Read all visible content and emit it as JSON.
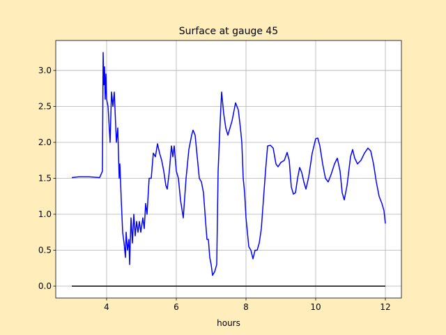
{
  "chart_data": {
    "type": "line",
    "title": "Surface at gauge 45",
    "xlabel": "hours",
    "xlim": [
      2.54,
      12.46
    ],
    "xticks": [
      4,
      6,
      8,
      10,
      12
    ],
    "ylim": [
      -0.165,
      3.417
    ],
    "yticks": [
      {
        "value": 0,
        "label": "0.0"
      },
      0.5,
      {
        "value": 1,
        "label": "1.0"
      },
      1.5,
      {
        "value": 2,
        "label": "2.0"
      },
      2.5,
      {
        "value": 3,
        "label": "3.0"
      }
    ],
    "grid": true,
    "series": [
      {
        "color": "#0000ff",
        "x": [
          3.0,
          3.2,
          3.5,
          3.8,
          3.88,
          3.9,
          3.92,
          3.94,
          3.96,
          3.98,
          4.0,
          4.04,
          4.1,
          4.14,
          4.18,
          4.22,
          4.28,
          4.32,
          4.36,
          4.38,
          4.42,
          4.46,
          4.5,
          4.54,
          4.56,
          4.6,
          4.64,
          4.66,
          4.7,
          4.74,
          4.78,
          4.82,
          4.86,
          4.9,
          4.94,
          4.98,
          5.04,
          5.08,
          5.12,
          5.16,
          5.22,
          5.28,
          5.34,
          5.4,
          5.46,
          5.52,
          5.58,
          5.64,
          5.7,
          5.74,
          5.8,
          5.86,
          5.9,
          5.94,
          6.0,
          6.06,
          6.12,
          6.2,
          6.28,
          6.36,
          6.44,
          6.48,
          6.54,
          6.6,
          6.66,
          6.72,
          6.78,
          6.84,
          6.88,
          6.92,
          6.96,
          7.0,
          7.04,
          7.1,
          7.16,
          7.2,
          7.26,
          7.3,
          7.36,
          7.42,
          7.48,
          7.54,
          7.6,
          7.66,
          7.7,
          7.78,
          7.84,
          7.88,
          7.92,
          7.96,
          8.0,
          8.04,
          8.08,
          8.14,
          8.2,
          8.26,
          8.32,
          8.38,
          8.44,
          8.5,
          8.56,
          8.62,
          8.7,
          8.78,
          8.86,
          8.92,
          9.0,
          9.1,
          9.18,
          9.24,
          9.3,
          9.36,
          9.42,
          9.48,
          9.54,
          9.6,
          9.66,
          9.72,
          9.8,
          9.9,
          10.0,
          10.06,
          10.12,
          10.2,
          10.28,
          10.36,
          10.44,
          10.54,
          10.62,
          10.7,
          10.76,
          10.82,
          10.9,
          11.0,
          11.06,
          11.12,
          11.2,
          11.3,
          11.4,
          11.5,
          11.58,
          11.66,
          11.74,
          11.82,
          11.9,
          11.96,
          12.0
        ],
        "values": [
          1.51,
          1.52,
          1.52,
          1.51,
          1.6,
          3.25,
          2.8,
          3.05,
          2.6,
          2.95,
          2.6,
          2.5,
          2.0,
          2.7,
          2.5,
          2.7,
          2.0,
          2.2,
          1.5,
          1.7,
          1.2,
          0.75,
          0.6,
          0.4,
          0.75,
          0.5,
          0.65,
          0.3,
          0.95,
          0.6,
          1.0,
          0.7,
          0.9,
          0.75,
          0.9,
          0.75,
          0.95,
          0.8,
          1.15,
          1.0,
          1.5,
          1.5,
          1.85,
          1.8,
          1.98,
          1.85,
          1.75,
          1.6,
          1.4,
          1.35,
          1.6,
          1.95,
          1.8,
          1.95,
          1.6,
          1.5,
          1.2,
          0.95,
          1.5,
          1.9,
          2.1,
          2.17,
          2.1,
          1.8,
          1.5,
          1.45,
          1.3,
          0.9,
          0.65,
          0.65,
          0.4,
          0.3,
          0.15,
          0.2,
          0.3,
          1.6,
          2.3,
          2.7,
          2.4,
          2.2,
          2.1,
          2.2,
          2.3,
          2.45,
          2.55,
          2.45,
          2.2,
          2.0,
          1.5,
          1.3,
          0.95,
          0.75,
          0.55,
          0.5,
          0.38,
          0.5,
          0.5,
          0.6,
          0.8,
          1.2,
          1.6,
          1.95,
          1.96,
          1.92,
          1.7,
          1.66,
          1.72,
          1.75,
          1.86,
          1.75,
          1.38,
          1.28,
          1.3,
          1.5,
          1.65,
          1.58,
          1.45,
          1.35,
          1.52,
          1.85,
          2.05,
          2.06,
          1.95,
          1.7,
          1.5,
          1.45,
          1.55,
          1.7,
          1.78,
          1.6,
          1.3,
          1.2,
          1.4,
          1.8,
          1.9,
          1.78,
          1.7,
          1.75,
          1.85,
          1.92,
          1.88,
          1.7,
          1.45,
          1.25,
          1.15,
          1.05,
          0.87
        ]
      },
      {
        "color": "#000000",
        "x": [
          3.0,
          12.0
        ],
        "values": [
          0,
          0
        ]
      }
    ]
  }
}
